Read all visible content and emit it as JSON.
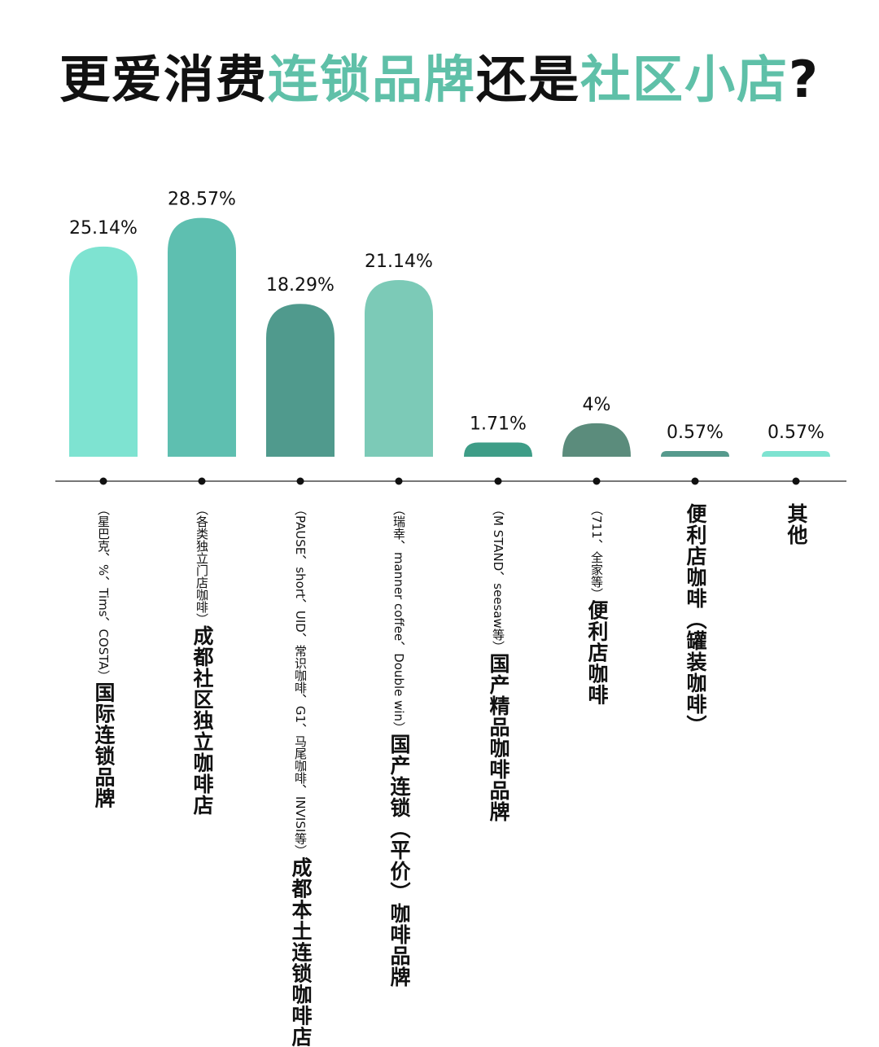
{
  "title": {
    "part1": "更爱消费",
    "highlight1": "连锁品牌",
    "part2": "还是",
    "highlight2": "社区小店",
    "part3": "?"
  },
  "colors": {
    "highlight": "#5fc0a8",
    "axis": "#777777",
    "text": "#111111"
  },
  "chart_data": {
    "type": "bar",
    "title": "更爱消费连锁品牌还是社区小店?",
    "ylim": [
      0,
      30
    ],
    "grid": false,
    "legend": "none",
    "categories": [
      "国际连锁品牌",
      "成都社区独立咖啡店",
      "成都本土连锁咖啡店",
      "国产连锁（平价）咖啡品牌",
      "国产精品咖啡品牌",
      "便利店咖啡",
      "便利店咖啡（罐装咖啡）",
      "其他"
    ],
    "sublabels": [
      "（星巴克、%、Tims、COSTA）",
      "（各类独立门店咖啡）",
      "（PAUSE、short、UID、常识咖啡、G1、马尾咖啡、INVISI等）",
      "（瑞幸、manner coffee、Double win）",
      "（M STAND、seesaw等）",
      "（711、全家等）",
      "",
      ""
    ],
    "values": [
      25.14,
      28.57,
      18.29,
      21.14,
      1.71,
      4,
      0.57,
      0.57
    ],
    "value_labels": [
      "25.14%",
      "28.57%",
      "18.29%",
      "21.14%",
      "1.71%",
      "4%",
      "0.57%",
      "0.57%"
    ],
    "colors": [
      "#7ee3d1",
      "#5ebfb0",
      "#509a8d",
      "#7ccab7",
      "#3e9d87",
      "#5b8c7c",
      "#569a8d",
      "#7ee3d1"
    ]
  }
}
